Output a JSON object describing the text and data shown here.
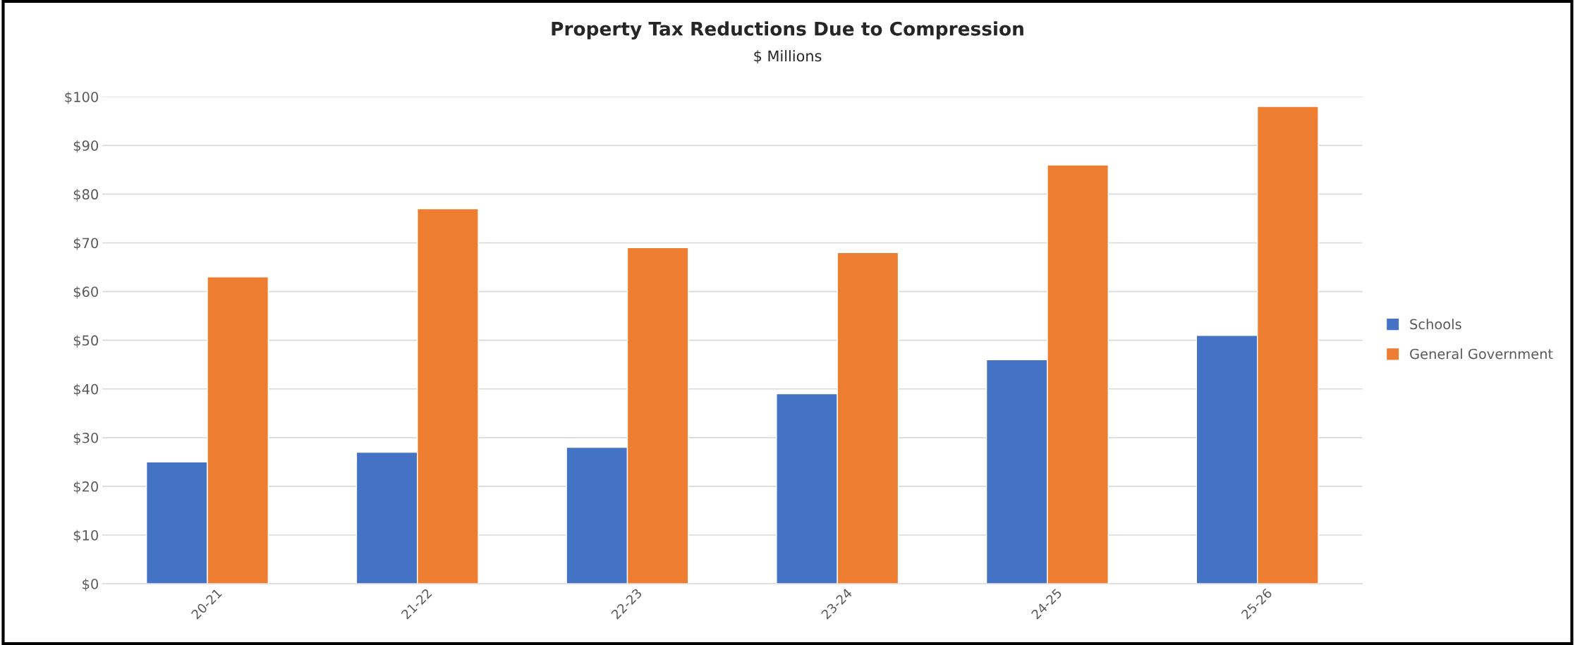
{
  "chart_data": {
    "type": "bar",
    "title": "Property Tax Reductions Due to Compression",
    "subtitle": "$ Millions",
    "categories": [
      "20-21",
      "21-22",
      "22-23",
      "23-24",
      "24-25",
      "25-26"
    ],
    "series": [
      {
        "name": "Schools",
        "color": "#4472c4",
        "values": [
          25,
          27,
          28,
          39,
          46,
          51
        ]
      },
      {
        "name": "General Government",
        "color": "#ed7d31",
        "values": [
          63,
          77,
          69,
          68,
          86,
          98
        ]
      }
    ],
    "ylim": [
      0,
      100
    ],
    "yticks": [
      {
        "value": 0,
        "label": "$0"
      },
      {
        "value": 10,
        "label": "$10"
      },
      {
        "value": 20,
        "label": "$20"
      },
      {
        "value": 30,
        "label": "$30"
      },
      {
        "value": 40,
        "label": "$40"
      },
      {
        "value": 50,
        "label": "$50"
      },
      {
        "value": 60,
        "label": "$60"
      },
      {
        "value": 70,
        "label": "$70"
      },
      {
        "value": 80,
        "label": "$80"
      },
      {
        "value": 90,
        "label": "$90"
      },
      {
        "value": 100,
        "label": "$100"
      }
    ],
    "grid": "y",
    "legend": "right"
  }
}
